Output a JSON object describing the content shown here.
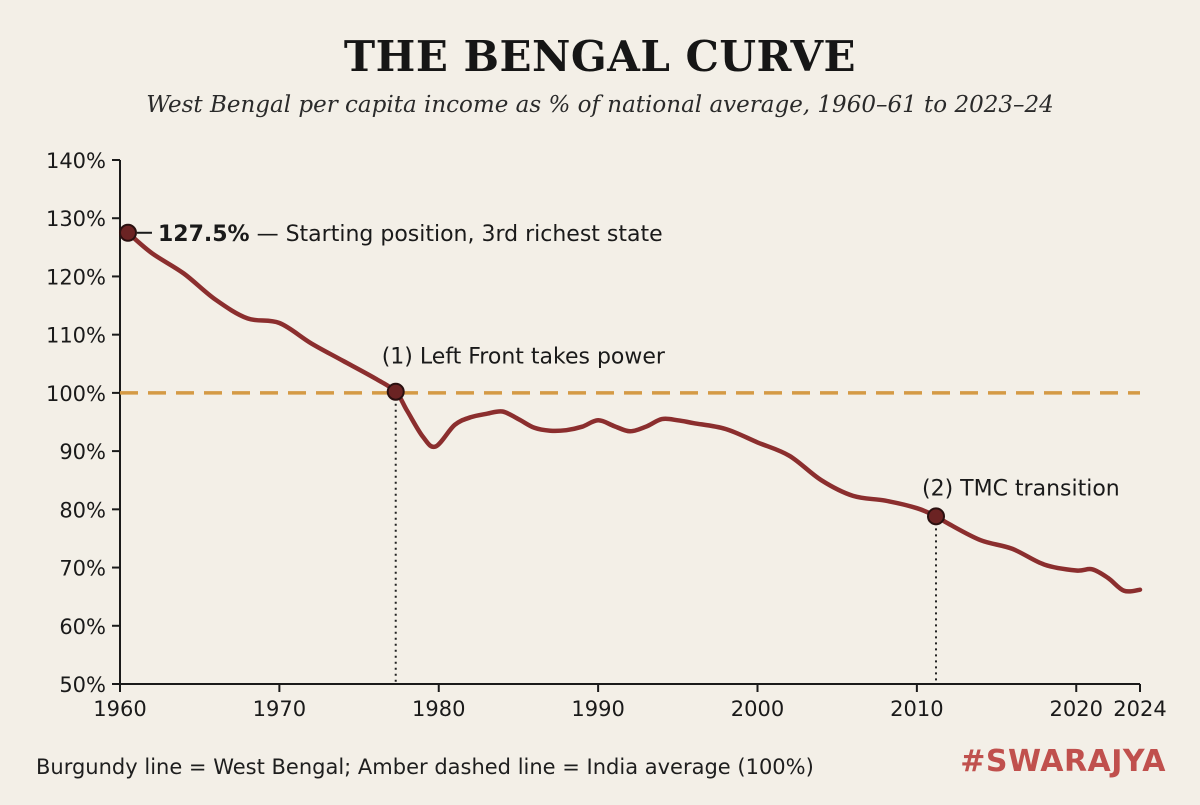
{
  "title": "THE BENGAL CURVE",
  "subtitle": "West Bengal per capita income as % of national average, 1960–61 to 2023–24",
  "footnote": "Burgundy line = West Bengal; Amber dashed line = India average (100%)",
  "brand": "#SWARAJYA",
  "colors": {
    "background": "#f3efe7",
    "line": "#8b2e2e",
    "reference": "#d49a45",
    "marker": "#6b2323",
    "axis": "#1a1a1a",
    "brand": "#c0504d"
  },
  "chart_data": {
    "type": "line",
    "title": "THE BENGAL CURVE",
    "xlabel": "",
    "ylabel": "",
    "xlim": [
      1960,
      2024
    ],
    "ylim": [
      50,
      140
    ],
    "grid": false,
    "x_ticks": [
      {
        "value": 1960,
        "label": "1960"
      },
      {
        "value": 1970,
        "label": "1970"
      },
      {
        "value": 1980,
        "label": "1980"
      },
      {
        "value": 1990,
        "label": "1990"
      },
      {
        "value": 2000,
        "label": "2000"
      },
      {
        "value": 2010,
        "label": "2010"
      },
      {
        "value": 2020,
        "label": "2020"
      },
      {
        "value": 2024,
        "label": "2024"
      }
    ],
    "y_ticks": [
      {
        "value": 50,
        "label": "50%"
      },
      {
        "value": 60,
        "label": "60%"
      },
      {
        "value": 70,
        "label": "70%"
      },
      {
        "value": 80,
        "label": "80%"
      },
      {
        "value": 90,
        "label": "90%"
      },
      {
        "value": 100,
        "label": "100%"
      },
      {
        "value": 110,
        "label": "110%"
      },
      {
        "value": 120,
        "label": "120%"
      },
      {
        "value": 130,
        "label": "130%"
      },
      {
        "value": 140,
        "label": "140%"
      }
    ],
    "series": [
      {
        "name": "West Bengal",
        "x": [
          1960.5,
          1962,
          1964,
          1966,
          1968,
          1970,
          1972,
          1974,
          1976,
          1977.3,
          1978,
          1979,
          1979.8,
          1981,
          1982,
          1983,
          1984,
          1985,
          1986,
          1987,
          1988,
          1989,
          1990,
          1991,
          1992,
          1993,
          1994,
          1995,
          1996,
          1998,
          2000,
          2002,
          2004,
          2006,
          2008,
          2010,
          2011.2,
          2012,
          2014,
          2016,
          2018,
          2020,
          2021,
          2022,
          2023,
          2024
        ],
        "values": [
          127.5,
          124,
          120.5,
          116,
          112.8,
          112,
          108.5,
          105.5,
          102.5,
          100.2,
          97,
          92.5,
          90.8,
          94.5,
          95.8,
          96.4,
          96.8,
          95.5,
          94,
          93.5,
          93.6,
          94.2,
          95.3,
          94.3,
          93.4,
          94.2,
          95.5,
          95.3,
          94.8,
          93.8,
          91.5,
          89.2,
          85,
          82.3,
          81.5,
          80.2,
          78.8,
          77.5,
          74.7,
          73.2,
          70.5,
          69.5,
          69.7,
          68.2,
          66,
          66.2
        ]
      },
      {
        "name": "India average",
        "x": [
          1960,
          2024
        ],
        "values": [
          100,
          100
        ]
      }
    ],
    "reference_line": {
      "value": 100,
      "label": "India average (100%)"
    },
    "markers": [
      {
        "x": 1960.5,
        "y": 127.5,
        "value_label": "127.5%",
        "label": "— Starting position, 3rd richest state"
      },
      {
        "x": 1977.3,
        "y": 100.2,
        "label": "(1) Left Front takes power"
      },
      {
        "x": 2011.2,
        "y": 78.8,
        "label": "(2) TMC transition"
      }
    ]
  }
}
